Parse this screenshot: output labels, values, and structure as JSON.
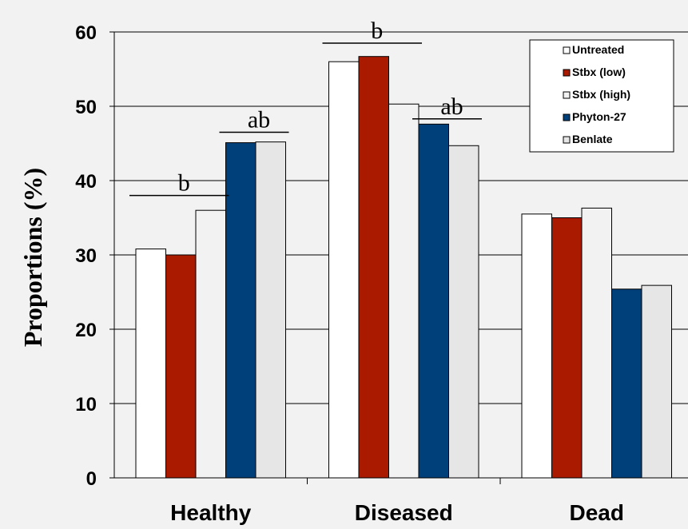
{
  "chart_data": {
    "type": "bar",
    "title": "",
    "xlabel": "",
    "ylabel": "Proportions (%)",
    "ylim": [
      0,
      60
    ],
    "yticks": [
      0,
      10,
      20,
      30,
      40,
      50,
      60
    ],
    "ytick_labels": [
      "0",
      "10",
      "20",
      "30",
      "40",
      "50",
      "60"
    ],
    "grid": true,
    "legend_position": "top-right",
    "categories": [
      "Healthy",
      "Diseased",
      "Dead"
    ],
    "series": [
      {
        "name": "Untreated",
        "color": "#ffffff",
        "values": [
          30.8,
          56.0,
          35.5
        ]
      },
      {
        "name": "Stbx (low)",
        "color": "#aa1a00",
        "values": [
          30.0,
          56.7,
          35.0
        ]
      },
      {
        "name": "Stbx (high)",
        "color": "#f2f2f2",
        "values": [
          36.0,
          50.3,
          36.3
        ]
      },
      {
        "name": "Phyton-27",
        "color": "#00407a",
        "values": [
          45.1,
          47.6,
          25.4
        ]
      },
      {
        "name": "Benlate",
        "color": "#e6e6e6",
        "values": [
          45.2,
          44.7,
          25.9
        ]
      }
    ],
    "annotations": [
      {
        "text": "b",
        "category": 0,
        "from_series": 0,
        "to_series": 2,
        "y": 38
      },
      {
        "text": "ab",
        "category": 0,
        "from_series": 3,
        "to_series": 4,
        "y": 46.5
      },
      {
        "text": "b",
        "category": 1,
        "from_series": 0,
        "to_series": 2,
        "y": 58.5
      },
      {
        "text": "ab",
        "category": 1,
        "from_series": 3,
        "to_series": 4,
        "y": 48.3
      }
    ]
  }
}
